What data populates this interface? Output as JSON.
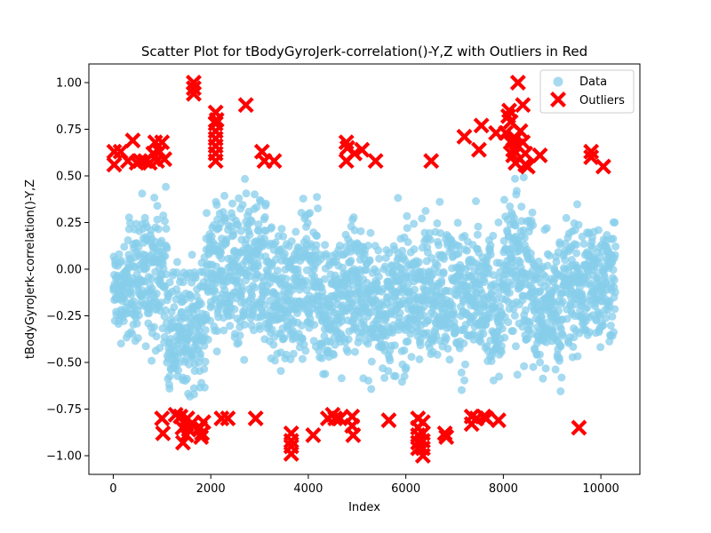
{
  "chart_data": {
    "type": "scatter",
    "title": "Scatter Plot for tBodyGyroJerk-correlation()-Y,Z with Outliers in Red",
    "xlabel": "Index",
    "ylabel": "tBodyGyroJerk-correlation()-Y,Z",
    "xlim": [
      -500,
      10800
    ],
    "ylim": [
      -1.1,
      1.1
    ],
    "xticks": [
      0,
      2000,
      4000,
      6000,
      8000,
      10000
    ],
    "yticks": [
      -1.0,
      -0.75,
      -0.5,
      -0.25,
      0.0,
      0.25,
      0.5,
      0.75,
      1.0
    ],
    "xtick_labels": [
      "0",
      "2000",
      "4000",
      "6000",
      "8000",
      "10000"
    ],
    "ytick_labels": [
      "−1.00",
      "−0.75",
      "−0.50",
      "−0.25",
      "0.00",
      "0.25",
      "0.50",
      "0.75",
      "1.00"
    ],
    "grid": false,
    "legend_position": "top-right",
    "series": [
      {
        "name": "Data",
        "color": "#87CEEB",
        "marker": "circle",
        "n_points": 10299,
        "x_range": [
          0,
          10299
        ],
        "segments": [
          {
            "x": [
              0,
              300
            ],
            "center": -0.12,
            "spread": 0.22
          },
          {
            "x": [
              300,
              700
            ],
            "center": -0.05,
            "spread": 0.3
          },
          {
            "x": [
              700,
              1100
            ],
            "center": -0.02,
            "spread": 0.32
          },
          {
            "x": [
              1100,
              1500
            ],
            "center": -0.35,
            "spread": 0.3
          },
          {
            "x": [
              1500,
              1900
            ],
            "center": -0.3,
            "spread": 0.33
          },
          {
            "x": [
              1900,
              2300
            ],
            "center": 0.0,
            "spread": 0.33
          },
          {
            "x": [
              2300,
              2700
            ],
            "center": -0.1,
            "spread": 0.38
          },
          {
            "x": [
              2700,
              3200
            ],
            "center": 0.0,
            "spread": 0.35
          },
          {
            "x": [
              3200,
              3700
            ],
            "center": -0.15,
            "spread": 0.33
          },
          {
            "x": [
              3700,
              4200
            ],
            "center": -0.05,
            "spread": 0.32
          },
          {
            "x": [
              4200,
              4700
            ],
            "center": -0.2,
            "spread": 0.33
          },
          {
            "x": [
              4700,
              5200
            ],
            "center": -0.1,
            "spread": 0.35
          },
          {
            "x": [
              5200,
              5800
            ],
            "center": -0.2,
            "spread": 0.3
          },
          {
            "x": [
              5800,
              6400
            ],
            "center": -0.15,
            "spread": 0.35
          },
          {
            "x": [
              6400,
              7000
            ],
            "center": -0.1,
            "spread": 0.33
          },
          {
            "x": [
              7000,
              7500
            ],
            "center": -0.15,
            "spread": 0.33
          },
          {
            "x": [
              7500,
              8000
            ],
            "center": -0.2,
            "spread": 0.33
          },
          {
            "x": [
              8000,
              8600
            ],
            "center": 0.0,
            "spread": 0.38
          },
          {
            "x": [
              8600,
              9200
            ],
            "center": -0.2,
            "spread": 0.32
          },
          {
            "x": [
              9200,
              9700
            ],
            "center": -0.1,
            "spread": 0.33
          },
          {
            "x": [
              9700,
              10299
            ],
            "center": -0.05,
            "spread": 0.3
          }
        ]
      },
      {
        "name": "Outliers",
        "color": "#FF0000",
        "marker": "X",
        "points": [
          [
            20,
            0.63
          ],
          [
            20,
            0.56
          ],
          [
            150,
            0.63
          ],
          [
            400,
            0.69
          ],
          [
            300,
            0.58
          ],
          [
            480,
            0.57
          ],
          [
            550,
            0.58
          ],
          [
            650,
            0.58
          ],
          [
            750,
            0.57
          ],
          [
            820,
            0.62
          ],
          [
            860,
            0.68
          ],
          [
            900,
            0.58
          ],
          [
            950,
            0.63
          ],
          [
            1000,
            0.68
          ],
          [
            1050,
            0.59
          ],
          [
            1000,
            -0.8
          ],
          [
            1020,
            -0.88
          ],
          [
            1280,
            -0.78
          ],
          [
            1380,
            -0.79
          ],
          [
            1420,
            -0.85
          ],
          [
            1430,
            -0.93
          ],
          [
            1500,
            -0.89
          ],
          [
            1520,
            -0.8
          ],
          [
            1550,
            -0.86
          ],
          [
            1600,
            -0.83
          ],
          [
            1650,
            1.0
          ],
          [
            1650,
            0.97
          ],
          [
            1650,
            0.94
          ],
          [
            1780,
            -0.85
          ],
          [
            1800,
            -0.9
          ],
          [
            1820,
            -0.88
          ],
          [
            1850,
            -0.82
          ],
          [
            2100,
            0.84
          ],
          [
            2100,
            0.78
          ],
          [
            2100,
            0.74
          ],
          [
            2100,
            0.7
          ],
          [
            2100,
            0.66
          ],
          [
            2100,
            0.62
          ],
          [
            2100,
            0.58
          ],
          [
            2120,
            0.8
          ],
          [
            2220,
            -0.8
          ],
          [
            2350,
            -0.8
          ],
          [
            2720,
            0.88
          ],
          [
            2920,
            -0.8
          ],
          [
            3050,
            0.63
          ],
          [
            3100,
            0.58
          ],
          [
            3300,
            0.58
          ],
          [
            3650,
            -0.88
          ],
          [
            3650,
            -0.92
          ],
          [
            3650,
            -0.95
          ],
          [
            3650,
            -0.99
          ],
          [
            4100,
            -0.89
          ],
          [
            4400,
            -0.8
          ],
          [
            4500,
            -0.78
          ],
          [
            4550,
            -0.8
          ],
          [
            4650,
            -0.8
          ],
          [
            4780,
            0.68
          ],
          [
            4800,
            0.65
          ],
          [
            4780,
            0.58
          ],
          [
            4900,
            -0.79
          ],
          [
            4900,
            -0.84
          ],
          [
            4920,
            -0.89
          ],
          [
            4950,
            0.62
          ],
          [
            5100,
            0.64
          ],
          [
            5380,
            0.58
          ],
          [
            5650,
            -0.81
          ],
          [
            6250,
            -0.8
          ],
          [
            6250,
            -0.85
          ],
          [
            6250,
            -0.89
          ],
          [
            6250,
            -0.93
          ],
          [
            6250,
            -0.96
          ],
          [
            6350,
            -0.82
          ],
          [
            6350,
            -0.88
          ],
          [
            6350,
            -0.92
          ],
          [
            6350,
            -0.96
          ],
          [
            6350,
            -1.0
          ],
          [
            6520,
            0.58
          ],
          [
            6800,
            -0.88
          ],
          [
            6830,
            -0.9
          ],
          [
            7200,
            0.71
          ],
          [
            7350,
            -0.79
          ],
          [
            7350,
            -0.83
          ],
          [
            7450,
            -0.8
          ],
          [
            7500,
            0.64
          ],
          [
            7550,
            0.77
          ],
          [
            7600,
            -0.79
          ],
          [
            7650,
            -0.8
          ],
          [
            7850,
            0.73
          ],
          [
            7900,
            -0.81
          ],
          [
            8050,
            0.73
          ],
          [
            8100,
            0.82
          ],
          [
            8120,
            0.85
          ],
          [
            8150,
            0.79
          ],
          [
            8150,
            0.68
          ],
          [
            8200,
            0.64
          ],
          [
            8200,
            0.61
          ],
          [
            8250,
            0.7
          ],
          [
            8250,
            0.57
          ],
          [
            8300,
            1.0
          ],
          [
            8300,
            0.66
          ],
          [
            8350,
            0.74
          ],
          [
            8400,
            0.88
          ],
          [
            8400,
            0.68
          ],
          [
            8450,
            0.62
          ],
          [
            8450,
            0.56
          ],
          [
            8500,
            0.55
          ],
          [
            8750,
            0.61
          ],
          [
            9550,
            -0.85
          ],
          [
            9800,
            0.63
          ],
          [
            9800,
            0.6
          ],
          [
            10050,
            0.55
          ]
        ]
      }
    ]
  }
}
